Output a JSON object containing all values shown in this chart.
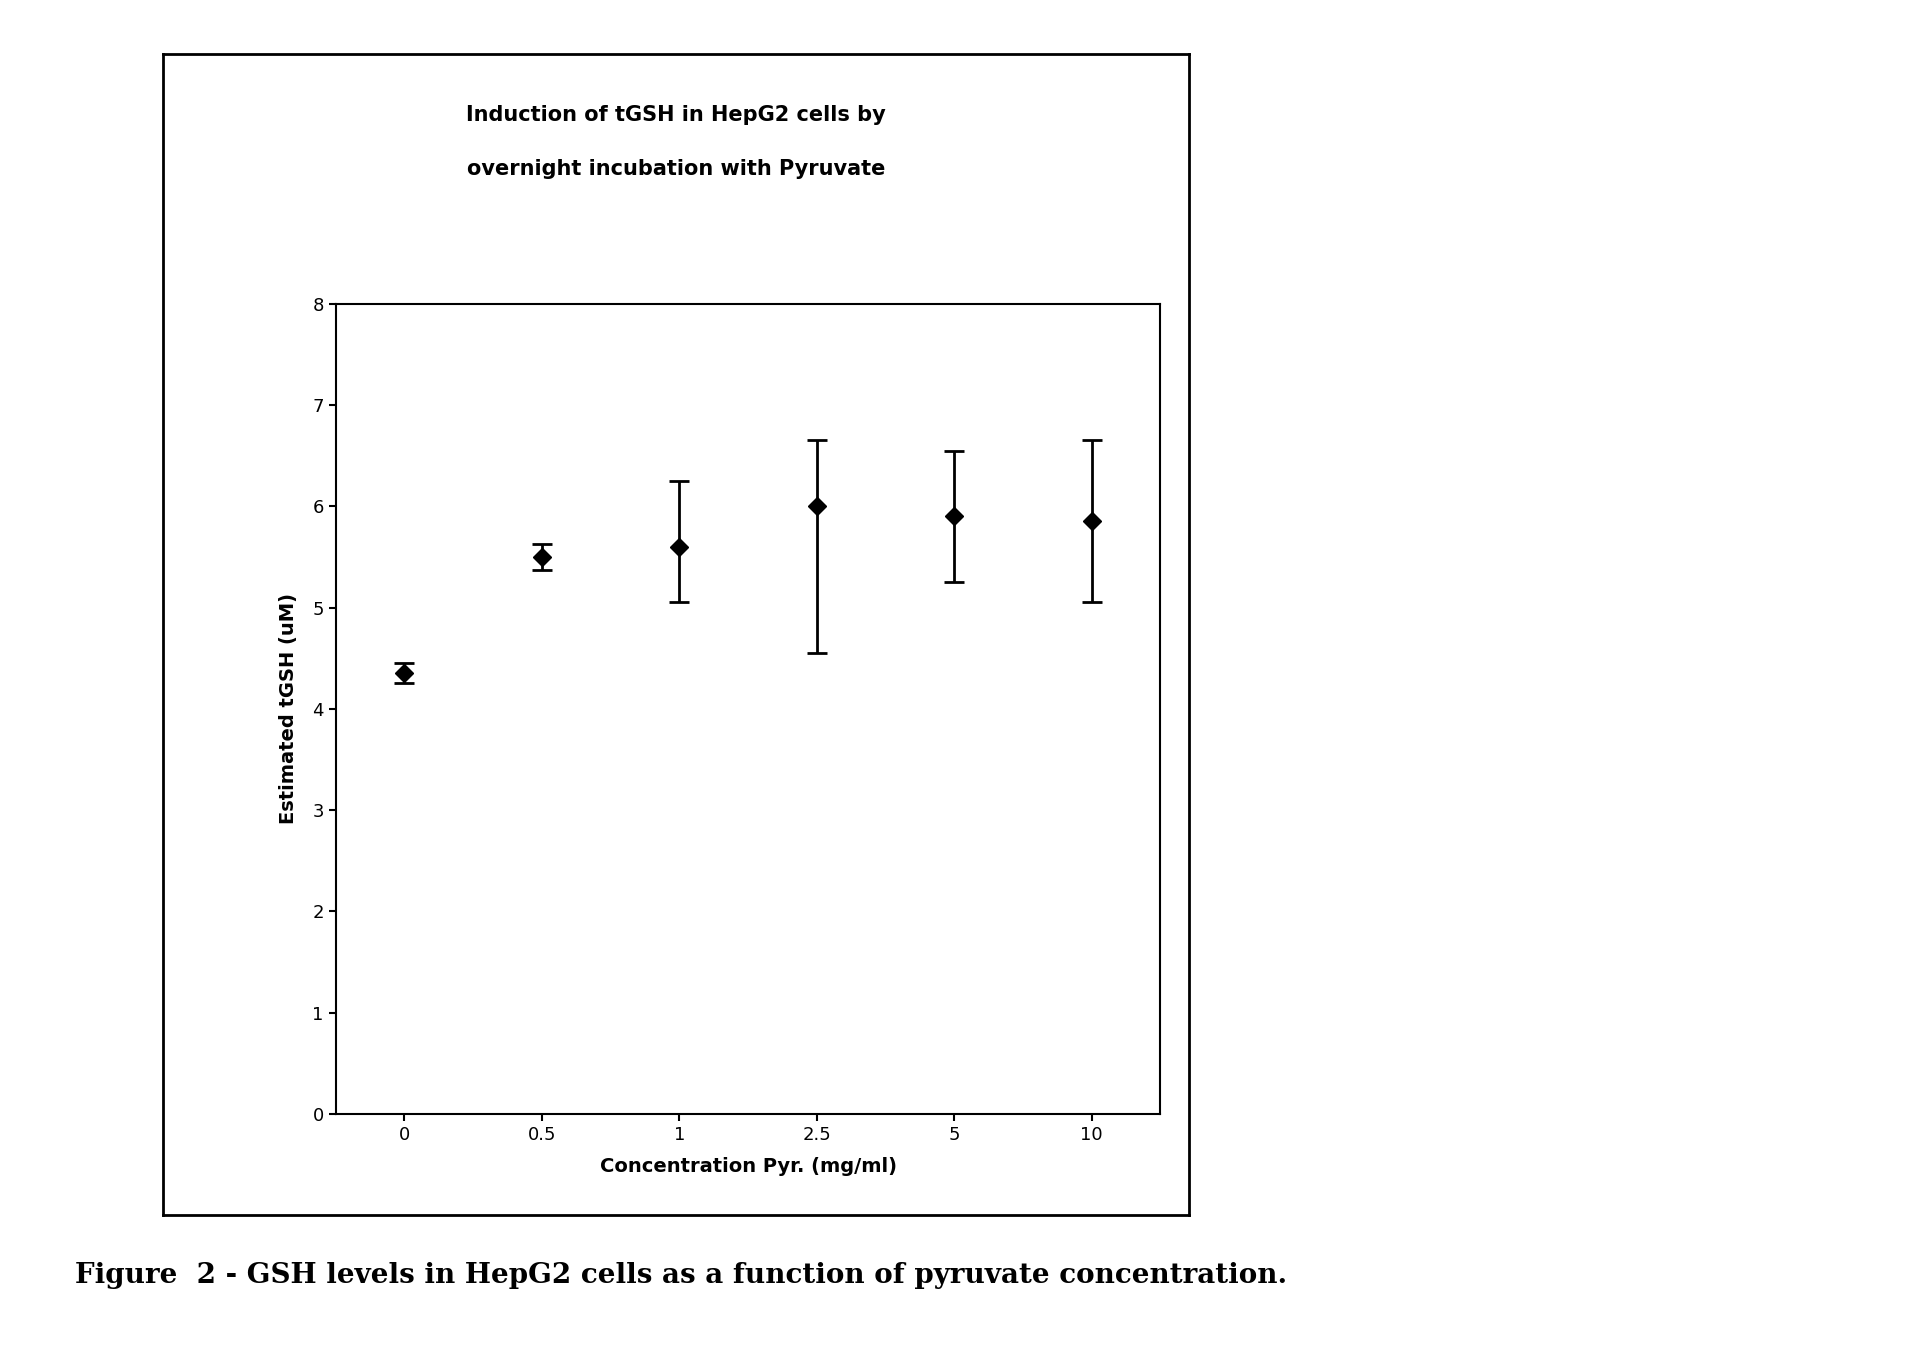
{
  "x_positions": [
    0,
    1,
    2,
    3,
    4,
    5
  ],
  "x": [
    0,
    0.5,
    1,
    2.5,
    5,
    10
  ],
  "y": [
    4.35,
    5.5,
    5.6,
    6.0,
    5.9,
    5.85
  ],
  "yerr_lower": [
    0.1,
    0.13,
    0.55,
    1.45,
    0.65,
    0.8
  ],
  "yerr_upper": [
    0.1,
    0.13,
    0.65,
    0.65,
    0.65,
    0.8
  ],
  "title_line1": "Induction of tGSH in HepG2 cells by",
  "title_line2": "overnight incubation with Pyruvate",
  "xlabel": "Concentration Pyr. (mg/ml)",
  "ylabel": "Estimated tGSH (uM)",
  "ylim": [
    0,
    8
  ],
  "yticks": [
    0,
    1,
    2,
    3,
    4,
    5,
    6,
    7,
    8
  ],
  "xtick_labels": [
    "0",
    "0.5",
    "1",
    "2.5",
    "5",
    "10"
  ],
  "caption": "Figure  2 - GSH levels in HepG2 cells as a function of pyruvate concentration.",
  "line_color": "#000000",
  "marker_color": "#000000",
  "bg_color": "#ffffff",
  "title_fontsize": 15,
  "axis_label_fontsize": 14,
  "tick_fontsize": 13,
  "caption_fontsize": 20
}
